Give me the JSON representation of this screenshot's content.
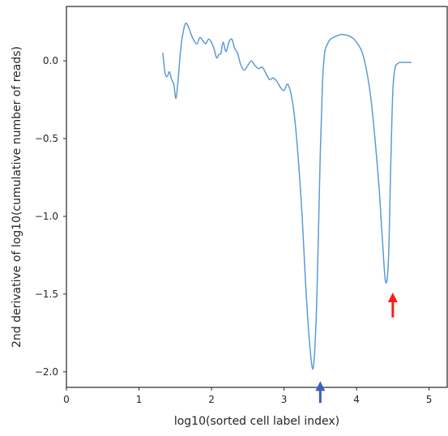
{
  "chart_data": {
    "type": "line",
    "title": "",
    "xlabel": "log10(sorted cell label index)",
    "ylabel": "2nd derivative of log10(cumulative number of reads)",
    "xlim": [
      0,
      5.25
    ],
    "ylim": [
      -2.1,
      0.35
    ],
    "x_ticks": [
      0,
      1,
      2,
      3,
      4,
      5
    ],
    "x_tick_labels": [
      "0",
      "1",
      "2",
      "3",
      "4",
      "5"
    ],
    "y_ticks": [
      0.0,
      -0.5,
      -1.0,
      -1.5,
      -2.0
    ],
    "y_tick_labels": [
      "0.0",
      "−0.5",
      "−1.0",
      "−1.5",
      "−2.0"
    ],
    "grid": false,
    "legend": "none",
    "series": [
      {
        "color": "#5b9bd5",
        "x": [
          1.33,
          1.36,
          1.39,
          1.42,
          1.45,
          1.48,
          1.51,
          1.54,
          1.57,
          1.6,
          1.64,
          1.68,
          1.72,
          1.76,
          1.8,
          1.84,
          1.88,
          1.92,
          1.96,
          2.0,
          2.04,
          2.07,
          2.1,
          2.13,
          2.16,
          2.2,
          2.24,
          2.28,
          2.32,
          2.36,
          2.4,
          2.45,
          2.5,
          2.55,
          2.6,
          2.65,
          2.7,
          2.75,
          2.8,
          2.85,
          2.9,
          2.95,
          3.0,
          3.05,
          3.1,
          3.15,
          3.2,
          3.25,
          3.3,
          3.35,
          3.4,
          3.44,
          3.47,
          3.5,
          3.53,
          3.56,
          3.6,
          3.64,
          3.68,
          3.72,
          3.76,
          3.8,
          3.9,
          4.0,
          4.1,
          4.2,
          4.3,
          4.35,
          4.4,
          4.44,
          4.47,
          4.5,
          4.53,
          4.56,
          4.6,
          4.65,
          4.7,
          4.75
        ],
        "y": [
          0.05,
          -0.08,
          -0.1,
          -0.07,
          -0.12,
          -0.15,
          -0.24,
          -0.12,
          0.05,
          0.16,
          0.24,
          0.22,
          0.17,
          0.13,
          0.11,
          0.15,
          0.13,
          0.11,
          0.14,
          0.12,
          0.07,
          0.02,
          0.04,
          0.05,
          0.12,
          0.06,
          0.12,
          0.14,
          0.08,
          0.05,
          -0.02,
          -0.06,
          -0.03,
          0.0,
          -0.03,
          -0.05,
          -0.04,
          -0.08,
          -0.12,
          -0.11,
          -0.13,
          -0.17,
          -0.19,
          -0.15,
          -0.22,
          -0.38,
          -0.65,
          -1.0,
          -1.45,
          -1.8,
          -1.98,
          -1.7,
          -1.2,
          -0.6,
          -0.15,
          0.05,
          0.11,
          0.14,
          0.15,
          0.16,
          0.165,
          0.17,
          0.16,
          0.12,
          0.02,
          -0.25,
          -0.75,
          -1.1,
          -1.42,
          -1.28,
          -0.7,
          -0.2,
          -0.05,
          -0.02,
          -0.01,
          -0.01,
          -0.01,
          -0.01
        ]
      }
    ],
    "annotations": [
      {
        "type": "arrow",
        "color": "#3a5fc4",
        "x": 3.5,
        "y_tip": -2.06,
        "y_tail": -2.2
      },
      {
        "type": "arrow",
        "color": "#ff1a1a",
        "x": 4.5,
        "y_tip": -1.49,
        "y_tail": -1.65
      }
    ]
  }
}
